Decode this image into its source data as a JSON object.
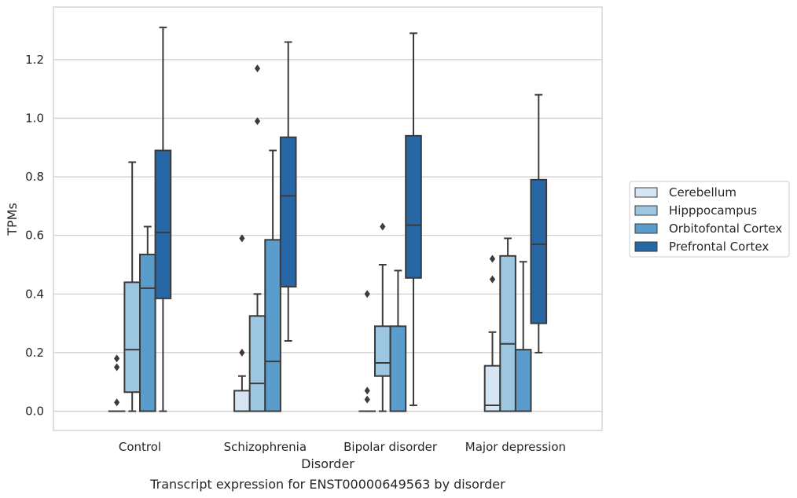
{
  "chart_data": {
    "type": "box",
    "title": "",
    "caption": "Transcript expression for ENST00000649563 by disorder",
    "xlabel": "Disorder",
    "ylabel": "TPMs",
    "ylim": [
      -0.065,
      1.38
    ],
    "yticks": [
      "0.0",
      "0.2",
      "0.4",
      "0.6",
      "0.8",
      "1.0",
      "1.2"
    ],
    "grid": "horizontal",
    "legend_position": "right",
    "categories": [
      "Control",
      "Schizophrenia",
      "Bipolar disorder",
      "Major depression"
    ],
    "series": [
      {
        "name": "Cerebellum",
        "color": "#d6e5f4",
        "boxes": [
          {
            "min": 0,
            "q1": 0,
            "median": 0,
            "q3": 0,
            "max": 0,
            "outliers": [
              0.03,
              0.15,
              0.18
            ]
          },
          {
            "min": 0,
            "q1": 0,
            "median": 0,
            "q3": 0.07,
            "max": 0.12,
            "outliers": [
              0.2,
              0.59
            ]
          },
          {
            "min": 0,
            "q1": 0,
            "median": 0,
            "q3": 0,
            "max": 0,
            "outliers": [
              0.04,
              0.07,
              0.4
            ]
          },
          {
            "min": 0,
            "q1": 0,
            "median": 0.02,
            "q3": 0.155,
            "max": 0.27,
            "outliers": [
              0.45,
              0.52
            ]
          }
        ]
      },
      {
        "name": "Hipppocampus",
        "color": "#9dc6e0",
        "boxes": [
          {
            "min": 0,
            "q1": 0.065,
            "median": 0.21,
            "q3": 0.44,
            "max": 0.85,
            "outliers": []
          },
          {
            "min": 0,
            "q1": 0,
            "median": 0.095,
            "q3": 0.325,
            "max": 0.4,
            "outliers": [
              0.99,
              1.17
            ]
          },
          {
            "min": 0,
            "q1": 0.12,
            "median": 0.165,
            "q3": 0.29,
            "max": 0.5,
            "outliers": [
              0.63
            ]
          },
          {
            "min": 0,
            "q1": 0,
            "median": 0.23,
            "q3": 0.53,
            "max": 0.59,
            "outliers": []
          }
        ]
      },
      {
        "name": "Orbitofontal Cortex",
        "color": "#5a9ccb",
        "boxes": [
          {
            "min": 0,
            "q1": 0,
            "median": 0.42,
            "q3": 0.535,
            "max": 0.63,
            "outliers": []
          },
          {
            "min": 0,
            "q1": 0,
            "median": 0.17,
            "q3": 0.585,
            "max": 0.89,
            "outliers": []
          },
          {
            "min": 0,
            "q1": 0,
            "median": 0,
            "q3": 0.29,
            "max": 0.48,
            "outliers": []
          },
          {
            "min": 0,
            "q1": 0,
            "median": 0,
            "q3": 0.21,
            "max": 0.51,
            "outliers": []
          }
        ]
      },
      {
        "name": "Prefrontal Cortex",
        "color": "#2767a6",
        "boxes": [
          {
            "min": 0,
            "q1": 0.385,
            "median": 0.61,
            "q3": 0.89,
            "max": 1.31,
            "outliers": []
          },
          {
            "min": 0.24,
            "q1": 0.425,
            "median": 0.735,
            "q3": 0.935,
            "max": 1.26,
            "outliers": []
          },
          {
            "min": 0.02,
            "q1": 0.455,
            "median": 0.635,
            "q3": 0.94,
            "max": 1.29,
            "outliers": []
          },
          {
            "min": 0.2,
            "q1": 0.3,
            "median": 0.57,
            "q3": 0.79,
            "max": 1.08,
            "outliers": []
          }
        ]
      }
    ]
  }
}
